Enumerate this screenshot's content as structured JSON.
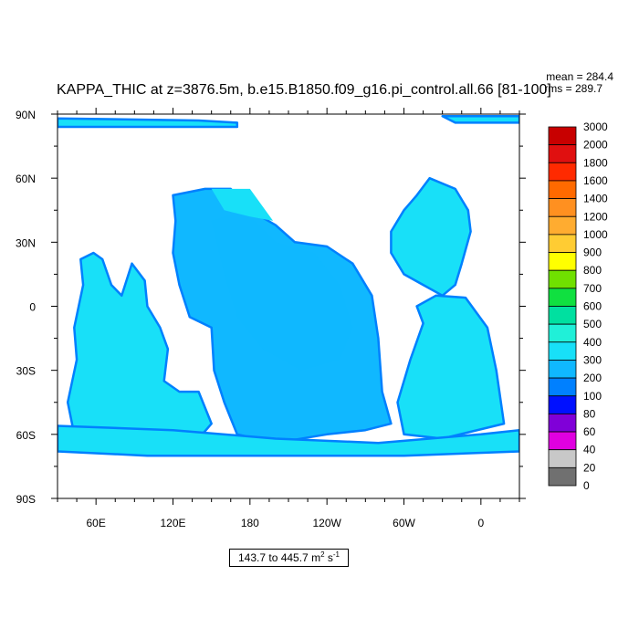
{
  "chart_data": {
    "type": "heatmap",
    "title": "KAPPA_THIC at z=3876.5m, b.e15.B1850.f09_g16.pi_control.all.66 [81-100]",
    "stats": {
      "mean": "mean = 284.4",
      "rms": "rms = 289.7"
    },
    "x_ticks": [
      "60E",
      "120E",
      "180",
      "120W",
      "60W",
      "0"
    ],
    "x_tick_lon": [
      60,
      120,
      180,
      240,
      300,
      360
    ],
    "x_range": [
      30,
      390
    ],
    "y_ticks": [
      "90N",
      "60N",
      "30N",
      "0",
      "30S",
      "60S",
      "90S"
    ],
    "y_tick_lat": [
      90,
      60,
      30,
      0,
      -30,
      -60,
      -90
    ],
    "y_range": [
      -90,
      90
    ],
    "colorbar": {
      "labels": [
        "3000",
        "2000",
        "1800",
        "1600",
        "1400",
        "1200",
        "1000",
        "900",
        "800",
        "700",
        "600",
        "500",
        "400",
        "300",
        "200",
        "100",
        "80",
        "60",
        "40",
        "20",
        "0"
      ],
      "colors": [
        "#c80000",
        "#e01010",
        "#ff2a00",
        "#ff6a00",
        "#ff9020",
        "#ffac30",
        "#ffcc33",
        "#ffff00",
        "#70e000",
        "#10e040",
        "#00e0a0",
        "#20f0d8",
        "#18e0f8",
        "#10b8ff",
        "#0080ff",
        "#0010ff",
        "#8000d8",
        "#e000e0",
        "#c8c8c8",
        "#707070"
      ]
    },
    "range_label": {
      "text": "143.7 to 445.7 m",
      "unit_sup1": "2",
      "unit_s": " s",
      "unit_sup2": "-1"
    },
    "dominant_value_range": [
      400,
      500
    ],
    "colors": {
      "ocean_fill": "#18e0f8",
      "mid_fill": "#10b8ff",
      "edge_fill": "#0080ff",
      "land": "#ffffff"
    }
  }
}
